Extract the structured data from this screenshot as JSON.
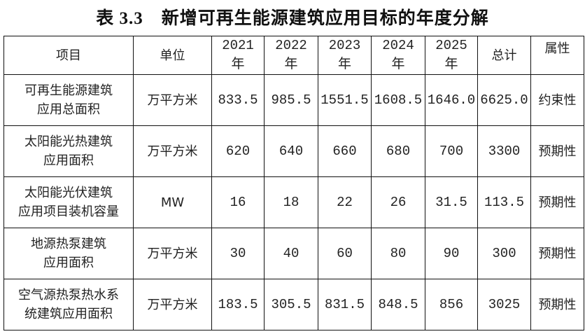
{
  "title": {
    "number": "表 3.3",
    "text": "新增可再生能源建筑应用目标的年度分解"
  },
  "table": {
    "headers": [
      "项目",
      "单位",
      "2021 年",
      "2022 年",
      "2023 年",
      "2024 年",
      "2025 年",
      "总计",
      "属性"
    ],
    "rows": [
      {
        "item_line1": "可再生能源建筑",
        "item_line2": "应用总面积",
        "unit": "万平方米",
        "values": [
          "833.5",
          "985.5",
          "1551.5",
          "1608.5",
          "1646.0",
          "6625.0"
        ],
        "attr": "约束性"
      },
      {
        "item_line1": "太阳能光热建筑",
        "item_line2": "应用面积",
        "unit": "万平方米",
        "values": [
          "620",
          "640",
          "660",
          "680",
          "700",
          "3300"
        ],
        "attr": "预期性"
      },
      {
        "item_line1": "太阳能光伏建筑",
        "item_line2": "应用项目装机容量",
        "unit": "MW",
        "values": [
          "16",
          "18",
          "22",
          "26",
          "31.5",
          "113.5"
        ],
        "attr": "预期性"
      },
      {
        "item_line1": "地源热泵建筑",
        "item_line2": "应用面积",
        "unit": "万平方米",
        "values": [
          "30",
          "40",
          "60",
          "80",
          "90",
          "300"
        ],
        "attr": "预期性"
      },
      {
        "item_line1": "空气源热泵热水系",
        "item_line2": "统建筑应用面积",
        "unit": "万平方米",
        "values": [
          "183.5",
          "305.5",
          "831.5",
          "848.5",
          "856",
          "3025"
        ],
        "attr": "预期性"
      }
    ]
  }
}
